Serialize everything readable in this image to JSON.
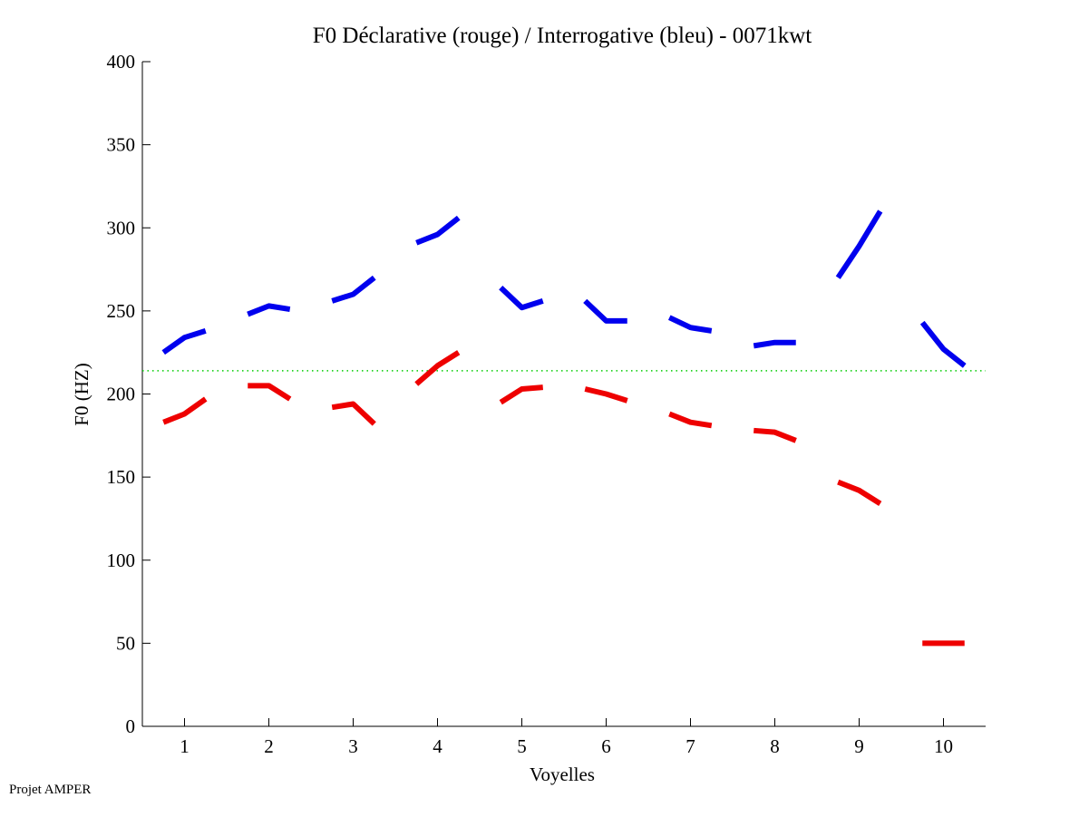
{
  "chart_data": {
    "type": "line",
    "title": "F0 Déclarative (rouge) / Interrogative (bleu) - 0071kwt",
    "xlabel": "Voyelles",
    "ylabel": "F0 (HZ)",
    "xlim": [
      0.5,
      10.5
    ],
    "ylim": [
      0,
      400
    ],
    "xticks": [
      1,
      2,
      3,
      4,
      5,
      6,
      7,
      8,
      9,
      10
    ],
    "yticks": [
      0,
      50,
      100,
      150,
      200,
      250,
      300,
      350,
      400
    ],
    "grid": false,
    "reference_line": {
      "y": 214,
      "color": "#00cc00",
      "style": "dotted"
    },
    "segment_offsets": [
      -0.25,
      0,
      0.25
    ],
    "series": [
      {
        "name": "Interrogative (bleu)",
        "color": "#0000ee",
        "segments": [
          [
            225,
            234,
            238
          ],
          [
            248,
            253,
            251
          ],
          [
            256,
            260,
            270
          ],
          [
            291,
            296,
            306
          ],
          [
            264,
            252,
            256
          ],
          [
            256,
            244,
            244
          ],
          [
            246,
            240,
            238
          ],
          [
            229,
            231,
            231
          ],
          [
            270,
            289,
            310
          ],
          [
            243,
            227,
            217
          ]
        ]
      },
      {
        "name": "Déclarative (rouge)",
        "color": "#ee0000",
        "segments": [
          [
            183,
            188,
            197
          ],
          [
            205,
            205,
            197
          ],
          [
            192,
            194,
            182
          ],
          [
            206,
            217,
            225
          ],
          [
            195,
            203,
            204
          ],
          [
            203,
            200,
            196
          ],
          [
            188,
            183,
            181
          ],
          [
            178,
            177,
            172
          ],
          [
            147,
            142,
            134
          ],
          [
            50,
            50,
            50
          ]
        ]
      }
    ]
  },
  "footer": {
    "text": "Projet AMPER"
  }
}
